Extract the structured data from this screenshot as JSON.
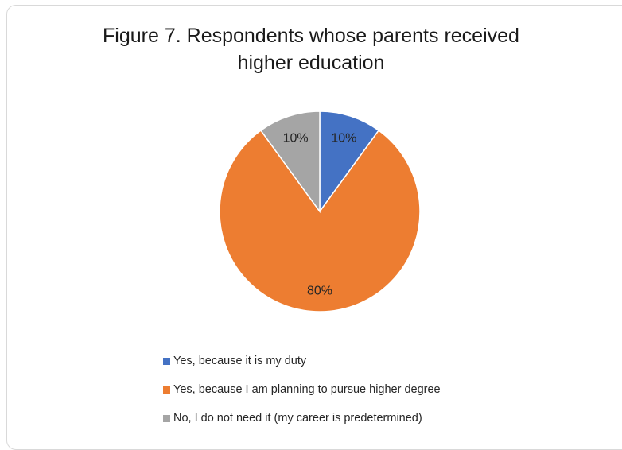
{
  "chart_data": {
    "type": "pie",
    "title_lines": [
      "Figure 7. Respondents whose parents received",
      "higher education"
    ],
    "slices": [
      {
        "label": "Yes, because it is my duty",
        "value": 10,
        "display": "10%",
        "color": "#4472c4"
      },
      {
        "label": "Yes, because I am planning to pursue higher degree",
        "value": 80,
        "display": "80%",
        "color": "#ed7d31"
      },
      {
        "label": "No, I do not need it (my career is predetermined)",
        "value": 10,
        "display": "10%",
        "color": "#a5a5a5"
      }
    ],
    "legend_position": "bottom"
  }
}
